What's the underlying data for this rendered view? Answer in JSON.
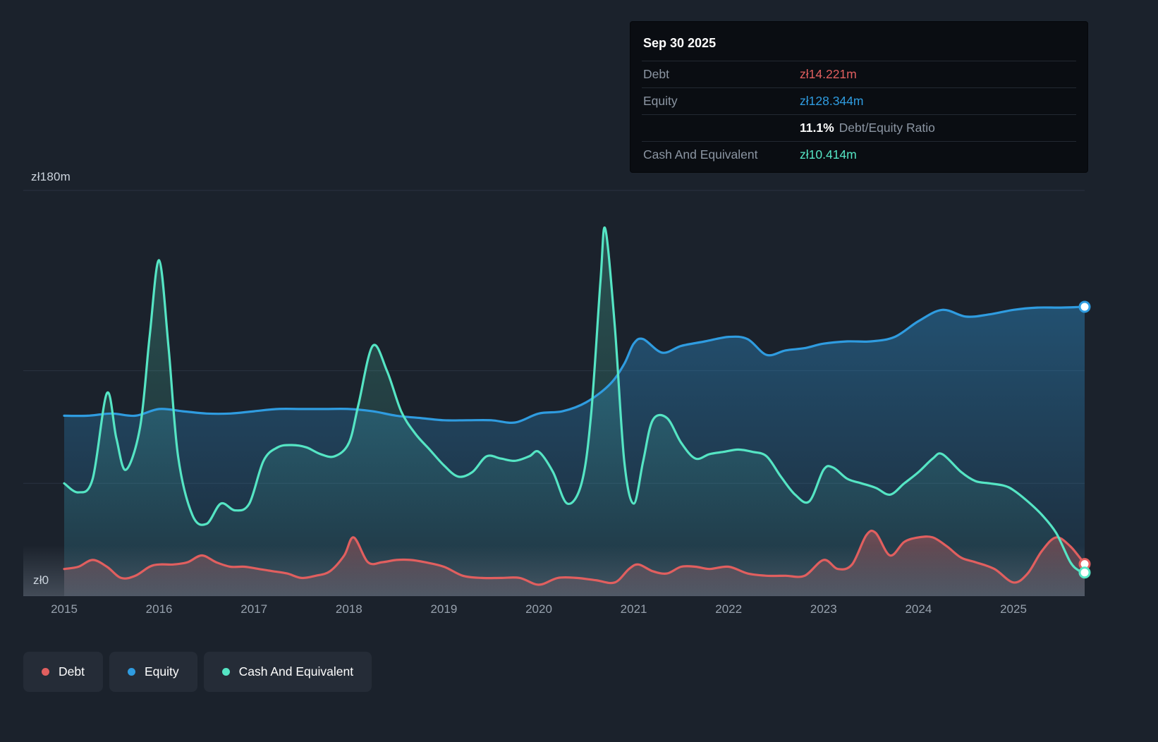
{
  "colors": {
    "debt": "#e15f5f",
    "equity": "#2f9ce0",
    "cash": "#55e5c4",
    "grid": "#2b3340",
    "background": "#1b222c",
    "tooltip_bg": "#0a0d12",
    "pill_bg": "#252c37",
    "muted_text": "#8b95a2"
  },
  "tooltip": {
    "date": "Sep 30 2025",
    "debt": {
      "label": "Debt",
      "value": "zł14.221m"
    },
    "equity": {
      "label": "Equity",
      "value": "zł128.344m"
    },
    "ratio": {
      "percent": "11.1%",
      "label": "Debt/Equity Ratio"
    },
    "cash": {
      "label": "Cash And Equivalent",
      "value": "zł10.414m"
    }
  },
  "axis": {
    "y_top_label": "zł180m",
    "y_zero_label": "zł0",
    "x_labels": [
      "2015",
      "2016",
      "2017",
      "2018",
      "2019",
      "2020",
      "2021",
      "2022",
      "2023",
      "2024",
      "2025"
    ]
  },
  "legend": [
    {
      "label": "Debt",
      "color": "#e15f5f"
    },
    {
      "label": "Equity",
      "color": "#2f9ce0"
    },
    {
      "label": "Cash And Equivalent",
      "color": "#55e5c4"
    }
  ],
  "chart_data": {
    "type": "area",
    "title": "Debt, Equity and Cash And Equivalent history",
    "y_unit": "zł millions (PLN)",
    "x_range": [
      2015,
      2025.75
    ],
    "ylim": [
      0,
      180
    ],
    "gridlines": [
      180,
      100,
      50,
      0
    ],
    "x_ticks": [
      2015,
      2016,
      2017,
      2018,
      2019,
      2020,
      2021,
      2022,
      2023,
      2024,
      2025
    ],
    "latest": {
      "date": "Sep 30 2025",
      "debt": 14.221,
      "equity": 128.344,
      "cash_and_equivalent": 10.414,
      "debt_equity_ratio_percent": 11.1
    },
    "series": [
      {
        "key": "equity",
        "name": "Equity",
        "color": "#2f9ce0",
        "points": [
          [
            2015,
            80
          ],
          [
            2015.25,
            80
          ],
          [
            2015.5,
            81
          ],
          [
            2015.75,
            80
          ],
          [
            2016,
            83
          ],
          [
            2016.25,
            82
          ],
          [
            2016.5,
            81
          ],
          [
            2016.75,
            81
          ],
          [
            2017,
            82
          ],
          [
            2017.25,
            83
          ],
          [
            2017.5,
            83
          ],
          [
            2017.75,
            83
          ],
          [
            2018,
            83
          ],
          [
            2018.25,
            82
          ],
          [
            2018.5,
            80
          ],
          [
            2018.75,
            79
          ],
          [
            2019,
            78
          ],
          [
            2019.25,
            78
          ],
          [
            2019.5,
            78
          ],
          [
            2019.75,
            77
          ],
          [
            2020,
            81
          ],
          [
            2020.25,
            82
          ],
          [
            2020.5,
            86
          ],
          [
            2020.75,
            94
          ],
          [
            2020.9,
            103
          ],
          [
            2021,
            112
          ],
          [
            2021.1,
            114
          ],
          [
            2021.3,
            108
          ],
          [
            2021.5,
            111
          ],
          [
            2021.75,
            113
          ],
          [
            2022,
            115
          ],
          [
            2022.2,
            114
          ],
          [
            2022.4,
            107
          ],
          [
            2022.6,
            109
          ],
          [
            2022.8,
            110
          ],
          [
            2023,
            112
          ],
          [
            2023.25,
            113
          ],
          [
            2023.5,
            113
          ],
          [
            2023.75,
            115
          ],
          [
            2024,
            122
          ],
          [
            2024.25,
            127
          ],
          [
            2024.5,
            124
          ],
          [
            2024.75,
            125
          ],
          [
            2025,
            127
          ],
          [
            2025.25,
            128
          ],
          [
            2025.5,
            128
          ],
          [
            2025.75,
            128.344
          ]
        ]
      },
      {
        "key": "cash",
        "name": "Cash And Equivalent",
        "color": "#55e5c4",
        "points": [
          [
            2015,
            50
          ],
          [
            2015.15,
            46
          ],
          [
            2015.3,
            52
          ],
          [
            2015.45,
            90
          ],
          [
            2015.55,
            70
          ],
          [
            2015.65,
            56
          ],
          [
            2015.8,
            75
          ],
          [
            2015.9,
            115
          ],
          [
            2016,
            149
          ],
          [
            2016.1,
            110
          ],
          [
            2016.2,
            62
          ],
          [
            2016.35,
            36
          ],
          [
            2016.5,
            32
          ],
          [
            2016.65,
            41
          ],
          [
            2016.8,
            38
          ],
          [
            2016.95,
            41
          ],
          [
            2017.1,
            60
          ],
          [
            2017.25,
            66
          ],
          [
            2017.4,
            67
          ],
          [
            2017.55,
            66
          ],
          [
            2017.7,
            63
          ],
          [
            2017.85,
            62
          ],
          [
            2018,
            68
          ],
          [
            2018.1,
            85
          ],
          [
            2018.25,
            111
          ],
          [
            2018.4,
            100
          ],
          [
            2018.55,
            82
          ],
          [
            2018.7,
            72
          ],
          [
            2018.85,
            65
          ],
          [
            2019,
            58
          ],
          [
            2019.15,
            53
          ],
          [
            2019.3,
            55
          ],
          [
            2019.45,
            62
          ],
          [
            2019.6,
            61
          ],
          [
            2019.75,
            60
          ],
          [
            2019.9,
            62
          ],
          [
            2020,
            64
          ],
          [
            2020.15,
            55
          ],
          [
            2020.3,
            41
          ],
          [
            2020.45,
            50
          ],
          [
            2020.55,
            80
          ],
          [
            2020.65,
            140
          ],
          [
            2020.7,
            163
          ],
          [
            2020.8,
            120
          ],
          [
            2020.9,
            60
          ],
          [
            2021,
            41
          ],
          [
            2021.1,
            60
          ],
          [
            2021.2,
            78
          ],
          [
            2021.35,
            79
          ],
          [
            2021.5,
            68
          ],
          [
            2021.65,
            61
          ],
          [
            2021.8,
            63
          ],
          [
            2021.95,
            64
          ],
          [
            2022.1,
            65
          ],
          [
            2022.25,
            64
          ],
          [
            2022.4,
            62
          ],
          [
            2022.55,
            53
          ],
          [
            2022.7,
            45
          ],
          [
            2022.85,
            42
          ],
          [
            2023,
            56
          ],
          [
            2023.1,
            57
          ],
          [
            2023.25,
            52
          ],
          [
            2023.4,
            50
          ],
          [
            2023.55,
            48
          ],
          [
            2023.7,
            45
          ],
          [
            2023.85,
            50
          ],
          [
            2024,
            55
          ],
          [
            2024.15,
            61
          ],
          [
            2024.25,
            63
          ],
          [
            2024.45,
            55
          ],
          [
            2024.6,
            51
          ],
          [
            2024.75,
            50
          ],
          [
            2024.9,
            49
          ],
          [
            2025,
            47
          ],
          [
            2025.15,
            42
          ],
          [
            2025.3,
            36
          ],
          [
            2025.45,
            28
          ],
          [
            2025.6,
            15
          ],
          [
            2025.7,
            11
          ],
          [
            2025.75,
            10.414
          ]
        ]
      },
      {
        "key": "debt",
        "name": "Debt",
        "color": "#e15f5f",
        "points": [
          [
            2015,
            12
          ],
          [
            2015.15,
            13
          ],
          [
            2015.3,
            16
          ],
          [
            2015.45,
            13
          ],
          [
            2015.6,
            8
          ],
          [
            2015.75,
            9
          ],
          [
            2015.9,
            13
          ],
          [
            2016,
            14
          ],
          [
            2016.15,
            14
          ],
          [
            2016.3,
            15
          ],
          [
            2016.45,
            18
          ],
          [
            2016.6,
            15
          ],
          [
            2016.75,
            13
          ],
          [
            2016.9,
            13
          ],
          [
            2017.05,
            12
          ],
          [
            2017.2,
            11
          ],
          [
            2017.35,
            10
          ],
          [
            2017.5,
            8
          ],
          [
            2017.65,
            9
          ],
          [
            2017.8,
            11
          ],
          [
            2017.95,
            18
          ],
          [
            2018.05,
            26
          ],
          [
            2018.2,
            15
          ],
          [
            2018.35,
            15
          ],
          [
            2018.5,
            16
          ],
          [
            2018.65,
            16
          ],
          [
            2018.8,
            15
          ],
          [
            2019,
            13
          ],
          [
            2019.2,
            9
          ],
          [
            2019.4,
            8
          ],
          [
            2019.6,
            8
          ],
          [
            2019.8,
            8
          ],
          [
            2020,
            5
          ],
          [
            2020.2,
            8
          ],
          [
            2020.4,
            8
          ],
          [
            2020.6,
            7
          ],
          [
            2020.8,
            6
          ],
          [
            2020.95,
            12
          ],
          [
            2021.05,
            14
          ],
          [
            2021.2,
            11
          ],
          [
            2021.35,
            10
          ],
          [
            2021.5,
            13
          ],
          [
            2021.65,
            13
          ],
          [
            2021.8,
            12
          ],
          [
            2022,
            13
          ],
          [
            2022.2,
            10
          ],
          [
            2022.4,
            9
          ],
          [
            2022.6,
            9
          ],
          [
            2022.8,
            9
          ],
          [
            2023,
            16
          ],
          [
            2023.15,
            12
          ],
          [
            2023.3,
            14
          ],
          [
            2023.45,
            27
          ],
          [
            2023.55,
            28
          ],
          [
            2023.7,
            18
          ],
          [
            2023.85,
            24
          ],
          [
            2024,
            26
          ],
          [
            2024.15,
            26
          ],
          [
            2024.3,
            22
          ],
          [
            2024.45,
            17
          ],
          [
            2024.6,
            15
          ],
          [
            2024.8,
            12
          ],
          [
            2025,
            6
          ],
          [
            2025.15,
            10
          ],
          [
            2025.3,
            20
          ],
          [
            2025.45,
            26
          ],
          [
            2025.6,
            22
          ],
          [
            2025.75,
            14.221
          ]
        ]
      }
    ]
  }
}
